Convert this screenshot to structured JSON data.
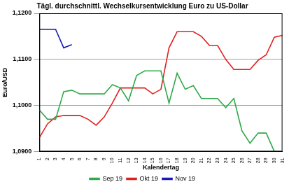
{
  "chart_data": {
    "type": "line",
    "title": "Tägl. durchschnittl. Wechselkursentwicklung Euro zu US-Dollar",
    "x_label": "Kalendertag",
    "y_label": "Euro/USD",
    "categories": [
      "1",
      "2",
      "3",
      "4",
      "5",
      "6",
      "7",
      "8",
      "9",
      "10",
      "11",
      "12",
      "13",
      "14",
      "15",
      "16",
      "17",
      "18",
      "19",
      "20",
      "21",
      "22",
      "23",
      "24",
      "25",
      "26",
      "27",
      "28",
      "29",
      "30",
      "31"
    ],
    "series": [
      {
        "name": "Sep 19",
        "color": "#2eaa4a",
        "values": [
          1.099,
          1.097,
          1.097,
          1.103,
          1.1033,
          1.1025,
          1.1025,
          1.1025,
          1.1025,
          1.1045,
          1.1038,
          1.101,
          1.1065,
          1.1075,
          1.1075,
          1.1075,
          1.1005,
          1.107,
          1.1035,
          1.1043,
          1.1015,
          1.1015,
          1.1015,
          1.0995,
          1.1015,
          1.0945,
          1.0918,
          1.094,
          1.094,
          1.09,
          null
        ]
      },
      {
        "name": "Okt 19",
        "color": "#e02020",
        "values": [
          1.093,
          1.096,
          1.0975,
          1.0978,
          1.0978,
          1.0978,
          1.097,
          1.0957,
          1.0975,
          1.1005,
          1.1038,
          1.1038,
          1.1038,
          1.1038,
          1.1025,
          1.1035,
          1.1125,
          1.116,
          1.116,
          1.116,
          1.115,
          1.113,
          1.113,
          1.11,
          1.1078,
          1.1078,
          1.1078,
          1.1098,
          1.111,
          1.1148,
          1.1152
        ]
      },
      {
        "name": "Nov 19",
        "color": "#1a1ab8",
        "values": [
          1.1165,
          1.1165,
          1.1165,
          1.1125,
          1.1132,
          null,
          null,
          null,
          null,
          null,
          null,
          null,
          null,
          null,
          null,
          null,
          null,
          null,
          null,
          null,
          null,
          null,
          null,
          null,
          null,
          null,
          null,
          null,
          null,
          null,
          null
        ]
      }
    ],
    "ylim": [
      1.09,
      1.12
    ],
    "yticks": [
      {
        "value": 1.09,
        "label": "1,0900"
      },
      {
        "value": 1.1,
        "label": "1,1000"
      },
      {
        "value": 1.11,
        "label": "1,1100"
      },
      {
        "value": 1.12,
        "label": "1,1200"
      }
    ],
    "grid": true,
    "legend": "bottom"
  }
}
